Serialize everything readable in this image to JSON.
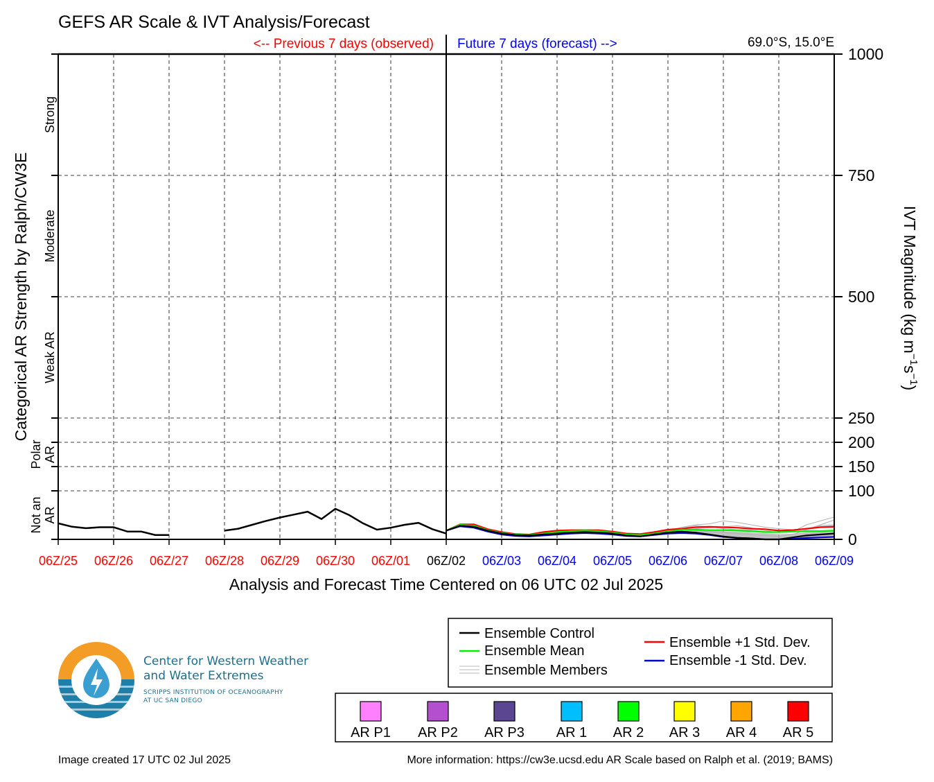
{
  "chart_data": {
    "type": "line",
    "title": "GEFS AR Scale & IVT Analysis/Forecast",
    "location": "69.0°S, 15.0°E",
    "previous_label": "<-- Previous 7 days (observed)",
    "future_label": "Future 7 days (forecast) -->",
    "xlabel": "Analysis and Forecast Time Centered on 06 UTC 02 Jul 2025",
    "ylabel_left": "Categorical AR Strength by Ralph/CW3E",
    "ylabel_right": "IVT Magnitude (kg m",
    "ylabel_right_exp1": "−1",
    "ylabel_right_mid": "s",
    "ylabel_right_exp2": "−1",
    "ylabel_right_end": ")",
    "ylim": [
      0,
      1000
    ],
    "x_ticks": [
      {
        "label": "06Z/25",
        "day": -7,
        "color": "#ff0000"
      },
      {
        "label": "06Z/26",
        "day": -6,
        "color": "#ff0000"
      },
      {
        "label": "06Z/27",
        "day": -5,
        "color": "#ff0000"
      },
      {
        "label": "06Z/28",
        "day": -4,
        "color": "#ff0000"
      },
      {
        "label": "06Z/29",
        "day": -3,
        "color": "#ff0000"
      },
      {
        "label": "06Z/30",
        "day": -2,
        "color": "#ff0000"
      },
      {
        "label": "06Z/01",
        "day": -1,
        "color": "#ff0000"
      },
      {
        "label": "06Z/02",
        "day": 0,
        "color": "#000000"
      },
      {
        "label": "06Z/03",
        "day": 1,
        "color": "#0000ff"
      },
      {
        "label": "06Z/04",
        "day": 2,
        "color": "#0000ff"
      },
      {
        "label": "06Z/05",
        "day": 3,
        "color": "#0000ff"
      },
      {
        "label": "06Z/06",
        "day": 4,
        "color": "#0000ff"
      },
      {
        "label": "06Z/07",
        "day": 5,
        "color": "#0000ff"
      },
      {
        "label": "06Z/08",
        "day": 6,
        "color": "#0000ff"
      },
      {
        "label": "06Z/09",
        "day": 7,
        "color": "#0000ff"
      }
    ],
    "y_ticks": [
      0,
      100,
      150,
      200,
      250,
      500,
      750,
      1000
    ],
    "categories": [
      {
        "label": "Strong",
        "low": 750,
        "high": 1000
      },
      {
        "label": "Moderate",
        "low": 500,
        "high": 750
      },
      {
        "label": "Weak AR",
        "low": 250,
        "high": 500
      },
      {
        "label": "Polar AR",
        "low": 100,
        "high": 250
      },
      {
        "label": "Not an AR",
        "low": 0,
        "high": 100
      }
    ],
    "observed": {
      "name": "Observed",
      "color": "#000000",
      "segments": [
        [
          [
            -7.0,
            33
          ],
          [
            -6.75,
            26
          ],
          [
            -6.5,
            23
          ],
          [
            -6.25,
            25
          ],
          [
            -6.0,
            25
          ],
          [
            -5.75,
            16
          ],
          [
            -5.5,
            16
          ],
          [
            -5.25,
            9
          ],
          [
            -5.0,
            9
          ]
        ],
        [
          [
            -4.0,
            18
          ],
          [
            -3.75,
            22
          ],
          [
            -3.5,
            30
          ],
          [
            -3.25,
            38
          ],
          [
            -3.0,
            45
          ],
          [
            -2.75,
            51
          ],
          [
            -2.5,
            57
          ],
          [
            -2.25,
            42
          ],
          [
            -2.0,
            63
          ],
          [
            -1.75,
            50
          ],
          [
            -1.5,
            33
          ],
          [
            -1.25,
            20
          ],
          [
            -1.0,
            24
          ],
          [
            -0.75,
            30
          ],
          [
            -0.5,
            34
          ],
          [
            -0.25,
            21
          ],
          [
            0.0,
            12
          ]
        ]
      ]
    },
    "series": [
      {
        "name": "Ensemble Control",
        "color": "#000000",
        "x": [
          0,
          0.25,
          0.5,
          0.75,
          1,
          1.25,
          1.5,
          1.75,
          2,
          2.25,
          2.5,
          2.75,
          3,
          3.25,
          3.5,
          3.75,
          4,
          4.25,
          4.5,
          4.75,
          5,
          5.25,
          5.5,
          5.75,
          6,
          6.25,
          6.5,
          6.75,
          7,
          7.25,
          7.5,
          7.75,
          8
        ],
        "values": [
          18,
          28,
          26,
          18,
          12,
          9,
          8,
          10,
          12,
          14,
          15,
          14,
          12,
          8,
          6,
          10,
          14,
          16,
          14,
          10,
          6,
          3,
          2,
          -2,
          -1,
          4,
          8,
          10,
          12,
          11,
          13,
          12,
          14
        ]
      },
      {
        "name": "Ensemble Mean",
        "color": "#00ee00",
        "x": [
          0,
          0.25,
          0.5,
          0.75,
          1,
          1.25,
          1.5,
          1.75,
          2,
          2.25,
          2.5,
          2.75,
          3,
          3.25,
          3.5,
          3.75,
          4,
          4.25,
          4.5,
          4.75,
          5,
          5.25,
          5.5,
          5.75,
          6,
          6.25,
          6.5,
          6.75,
          7,
          7.25,
          7.5,
          7.75,
          8
        ],
        "values": [
          18,
          30,
          28,
          19,
          13,
          10,
          9,
          12,
          15,
          17,
          18,
          17,
          14,
          10,
          9,
          12,
          16,
          20,
          20,
          19,
          19,
          18,
          17,
          15,
          15,
          16,
          17,
          17,
          18,
          18,
          20,
          20,
          21
        ]
      },
      {
        "name": "Ensemble +1 Std. Dev.",
        "color": "#ff0000",
        "x": [
          0,
          0.25,
          0.5,
          0.75,
          1,
          1.25,
          1.5,
          1.75,
          2,
          2.25,
          2.5,
          2.75,
          3,
          3.25,
          3.5,
          3.75,
          4,
          4.25,
          4.5,
          4.75,
          5,
          5.25,
          5.5,
          5.75,
          6,
          6.25,
          6.5,
          6.75,
          7,
          7.25,
          7.5,
          7.75,
          8
        ],
        "values": [
          18,
          31,
          31,
          21,
          15,
          11,
          10,
          15,
          18,
          19,
          19,
          19,
          16,
          12,
          11,
          15,
          20,
          22,
          25,
          26,
          25,
          24,
          22,
          21,
          18,
          19,
          22,
          25,
          26,
          26,
          30,
          34,
          38
        ]
      },
      {
        "name": "Ensemble -1 Std. Dev.",
        "color": "#0000cc",
        "x": [
          0,
          0.25,
          0.5,
          0.75,
          1,
          1.25,
          1.5,
          1.75,
          2,
          2.25,
          2.5,
          2.75,
          3,
          3.25,
          3.5,
          3.75,
          4,
          4.25,
          4.5,
          4.75,
          5,
          5.25,
          5.5,
          5.75,
          6,
          6.25,
          6.5,
          6.75,
          7,
          7.25,
          7.5,
          7.75,
          8
        ],
        "values": [
          18,
          27,
          24,
          16,
          10,
          7,
          6,
          8,
          10,
          12,
          13,
          12,
          10,
          7,
          6,
          9,
          12,
          13,
          12,
          9,
          5,
          3,
          2,
          0,
          0,
          1,
          3,
          4,
          5,
          5,
          5,
          5,
          5
        ]
      }
    ],
    "members": [
      [
        18,
        30,
        27,
        19,
        13,
        10,
        9,
        13,
        16,
        18,
        18,
        17,
        14,
        10,
        9,
        13,
        17,
        23,
        28,
        26,
        22,
        20,
        19,
        16,
        15,
        18,
        22,
        28,
        30,
        32,
        48,
        76,
        95
      ],
      [
        18,
        29,
        28,
        18,
        12,
        9,
        8,
        11,
        14,
        16,
        17,
        16,
        13,
        9,
        8,
        12,
        18,
        25,
        30,
        32,
        38,
        35,
        30,
        25,
        22,
        20,
        22,
        26,
        28,
        40,
        60,
        88,
        102
      ],
      [
        18,
        31,
        29,
        20,
        14,
        11,
        10,
        12,
        15,
        17,
        19,
        18,
        15,
        11,
        10,
        13,
        15,
        19,
        22,
        24,
        26,
        28,
        24,
        18,
        14,
        16,
        30,
        38,
        46,
        70,
        96,
        118,
        105
      ],
      [
        18,
        30,
        26,
        18,
        12,
        9,
        8,
        12,
        15,
        17,
        18,
        16,
        13,
        10,
        9,
        12,
        16,
        20,
        18,
        16,
        14,
        12,
        10,
        8,
        6,
        10,
        20,
        30,
        40,
        55,
        120,
        140,
        90
      ]
    ],
    "legend": {
      "control": "Ensemble Control",
      "mean": "Ensemble Mean",
      "members": "Ensemble Members",
      "plus": "Ensemble +1 Std. Dev.",
      "minus": "Ensemble -1 Std. Dev."
    },
    "scale_boxes": [
      {
        "label": "AR P1",
        "color": "#ff80ff"
      },
      {
        "label": "AR P2",
        "color": "#b44fd0"
      },
      {
        "label": "AR P3",
        "color": "#5a4691"
      },
      {
        "label": "AR 1",
        "color": "#00bfff"
      },
      {
        "label": "AR 2",
        "color": "#00ff00"
      },
      {
        "label": "AR 3",
        "color": "#ffff00"
      },
      {
        "label": "AR 4",
        "color": "#ffa500"
      },
      {
        "label": "AR 5",
        "color": "#ff0000"
      }
    ]
  },
  "logo": {
    "line1": "Center for Western Weather",
    "line2": "and Water Extremes",
    "line3": "SCRIPPS INSTITUTION OF OCEANOGRAPHY",
    "line4": "AT UC SAN DIEGO",
    "colors": {
      "orange": "#f39c26",
      "blue": "#1f7fa8",
      "light": "#ffffff"
    }
  },
  "footer": {
    "created": "Image created 17 UTC 02 Jul 2025",
    "info": "More information: https://cw3e.ucsd.edu AR Scale based on Ralph et al. (2019; BAMS)"
  }
}
